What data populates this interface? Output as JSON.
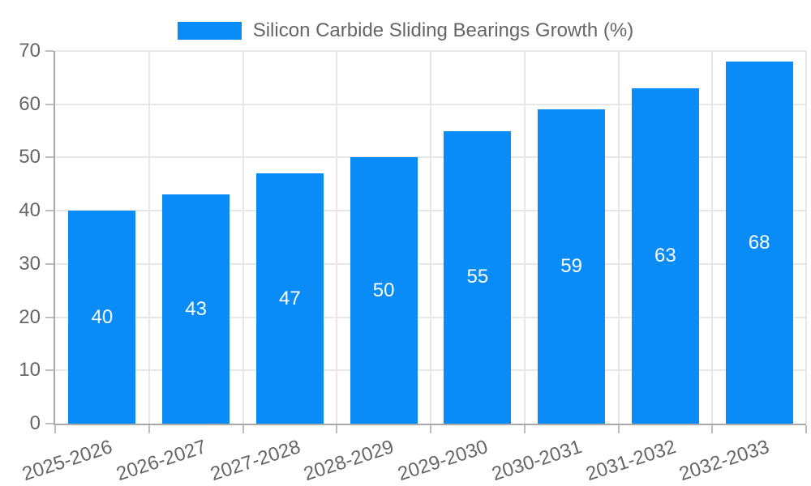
{
  "colors": {
    "bar": "#0a8cf8",
    "grid_line": "#e7e7e7",
    "axis_line": "#a9a9a9",
    "tick_mark": "#bdbdbd",
    "tick_label": "#666666",
    "legend_text": "#666666",
    "bar_label": "#ffffff",
    "background": "#ffffff"
  },
  "legend": {
    "label": "Silicon Carbide Sliding Bearings Growth (%)"
  },
  "chart_data": {
    "type": "bar",
    "title": "Silicon Carbide Sliding Bearings Growth (%)",
    "categories": [
      "2025-2026",
      "2026-2027",
      "2027-2028",
      "2028-2029",
      "2029-2030",
      "2030-2031",
      "2031-2032",
      "2032-2033"
    ],
    "values": [
      40,
      43,
      47,
      50,
      55,
      59,
      63,
      68
    ],
    "xlabel": "",
    "ylabel": "",
    "ylim": [
      0,
      70
    ],
    "yticks": [
      0,
      10,
      20,
      30,
      40,
      50,
      60,
      70
    ],
    "grid": true,
    "legend_position": "top",
    "show_bar_value_labels": true,
    "x_tick_rotation_deg": -18
  }
}
